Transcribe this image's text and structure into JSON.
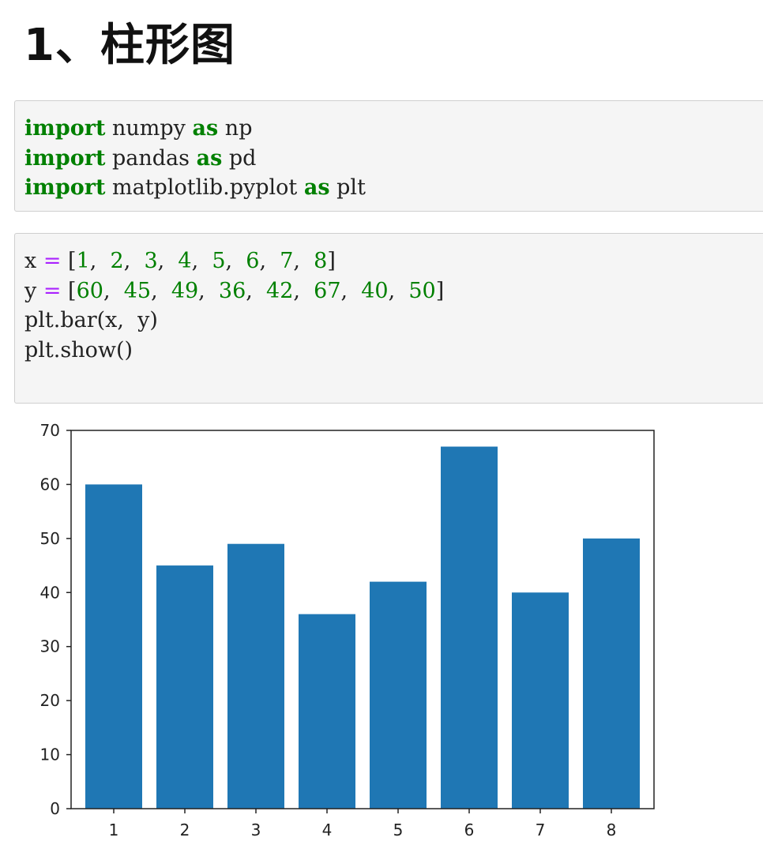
{
  "heading": "1、柱形图",
  "cells": [
    {
      "lines": [
        [
          {
            "t": "import",
            "c": "kw"
          },
          {
            "t": " numpy ",
            "c": "plain"
          },
          {
            "t": "as",
            "c": "kw"
          },
          {
            "t": " np",
            "c": "plain"
          }
        ],
        [
          {
            "t": "import",
            "c": "kw"
          },
          {
            "t": " pandas ",
            "c": "plain"
          },
          {
            "t": "as",
            "c": "kw"
          },
          {
            "t": " pd",
            "c": "plain"
          }
        ],
        [
          {
            "t": "import",
            "c": "kw"
          },
          {
            "t": " matplotlib.pyplot ",
            "c": "plain"
          },
          {
            "t": "as",
            "c": "kw"
          },
          {
            "t": " plt",
            "c": "plain"
          }
        ]
      ]
    },
    {
      "lines": [
        [
          {
            "t": "x ",
            "c": "plain"
          },
          {
            "t": "=",
            "c": "op"
          },
          {
            "t": " [",
            "c": "plain"
          },
          {
            "t": "1",
            "c": "num"
          },
          {
            "t": ",  ",
            "c": "plain"
          },
          {
            "t": "2",
            "c": "num"
          },
          {
            "t": ",  ",
            "c": "plain"
          },
          {
            "t": "3",
            "c": "num"
          },
          {
            "t": ",  ",
            "c": "plain"
          },
          {
            "t": "4",
            "c": "num"
          },
          {
            "t": ",  ",
            "c": "plain"
          },
          {
            "t": "5",
            "c": "num"
          },
          {
            "t": ",  ",
            "c": "plain"
          },
          {
            "t": "6",
            "c": "num"
          },
          {
            "t": ",  ",
            "c": "plain"
          },
          {
            "t": "7",
            "c": "num"
          },
          {
            "t": ",  ",
            "c": "plain"
          },
          {
            "t": "8",
            "c": "num"
          },
          {
            "t": "]",
            "c": "plain"
          }
        ],
        [
          {
            "t": "y ",
            "c": "plain"
          },
          {
            "t": "=",
            "c": "op"
          },
          {
            "t": " [",
            "c": "plain"
          },
          {
            "t": "60",
            "c": "num"
          },
          {
            "t": ",  ",
            "c": "plain"
          },
          {
            "t": "45",
            "c": "num"
          },
          {
            "t": ",  ",
            "c": "plain"
          },
          {
            "t": "49",
            "c": "num"
          },
          {
            "t": ",  ",
            "c": "plain"
          },
          {
            "t": "36",
            "c": "num"
          },
          {
            "t": ",  ",
            "c": "plain"
          },
          {
            "t": "42",
            "c": "num"
          },
          {
            "t": ",  ",
            "c": "plain"
          },
          {
            "t": "67",
            "c": "num"
          },
          {
            "t": ",  ",
            "c": "plain"
          },
          {
            "t": "40",
            "c": "num"
          },
          {
            "t": ",  ",
            "c": "plain"
          },
          {
            "t": "50",
            "c": "num"
          },
          {
            "t": "]",
            "c": "plain"
          }
        ],
        [
          {
            "t": "plt.bar(x,  y)",
            "c": "plain"
          }
        ],
        [
          {
            "t": "plt.show()",
            "c": "plain"
          }
        ]
      ]
    }
  ],
  "colors": {
    "bar": "#1f77b4",
    "keyword": "#008000",
    "operator": "#aa22ff",
    "cell_bg": "#f5f5f5"
  },
  "chart_data": {
    "type": "bar",
    "categories": [
      "1",
      "2",
      "3",
      "4",
      "5",
      "6",
      "7",
      "8"
    ],
    "values": [
      60,
      45,
      49,
      36,
      42,
      67,
      40,
      50
    ],
    "title": "",
    "xlabel": "",
    "ylabel": "",
    "ylim": [
      0,
      70
    ],
    "yticks": [
      "0",
      "10",
      "20",
      "30",
      "40",
      "50",
      "60",
      "70"
    ],
    "grid": false,
    "bar_color": "#1f77b4"
  }
}
